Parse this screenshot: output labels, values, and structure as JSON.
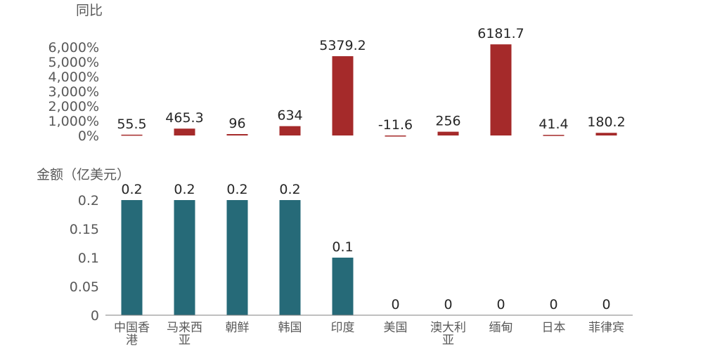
{
  "chart_data": [
    {
      "type": "bar",
      "unit_label": "同比",
      "categories": [
        "中国香港",
        "马来西亚",
        "朝鲜",
        "韩国",
        "印度",
        "美国",
        "澳大利亚",
        "缅甸",
        "日本",
        "菲律宾"
      ],
      "values": [
        55.5,
        465.3,
        96,
        634,
        5379.2,
        -11.6,
        256,
        6181.7,
        41.4,
        180.2
      ],
      "data_labels": [
        "55.5",
        "465.3",
        "96",
        "634",
        "5379.2",
        "-11.6",
        "256",
        "6181.7",
        "41.4",
        "180.2"
      ],
      "ylim": [
        0,
        6000
      ],
      "yticks": [
        0,
        1000,
        2000,
        3000,
        4000,
        5000,
        6000
      ],
      "ytick_labels": [
        "0%",
        "1,000%",
        "2,000%",
        "3,000%",
        "4,000%",
        "5,000%",
        "6,000%"
      ],
      "color": "#A52A2A",
      "grid": false
    },
    {
      "type": "bar",
      "unit_label": "金额（亿美元）",
      "categories": [
        "中国香港",
        "马来西亚",
        "朝鲜",
        "韩国",
        "印度",
        "美国",
        "澳大利亚",
        "缅甸",
        "日本",
        "菲律宾"
      ],
      "category_lines": [
        [
          "中国香",
          "港"
        ],
        [
          "马来西",
          "亚"
        ],
        [
          "朝鲜"
        ],
        [
          "韩国"
        ],
        [
          "印度"
        ],
        [
          "美国"
        ],
        [
          "澳大利",
          "亚"
        ],
        [
          "缅甸"
        ],
        [
          "日本"
        ],
        [
          "菲律宾"
        ]
      ],
      "values": [
        0.2,
        0.2,
        0.2,
        0.2,
        0.1,
        0,
        0,
        0,
        0,
        0
      ],
      "data_labels": [
        "0.2",
        "0.2",
        "0.2",
        "0.2",
        "0.1",
        "0",
        "0",
        "0",
        "0",
        "0"
      ],
      "ylim": [
        0,
        0.2
      ],
      "yticks": [
        0,
        0.05,
        0.1,
        0.15,
        0.2
      ],
      "ytick_labels": [
        "0",
        "0.05",
        "0.1",
        "0.15",
        "0.2"
      ],
      "color": "#266A78",
      "grid": false
    }
  ]
}
